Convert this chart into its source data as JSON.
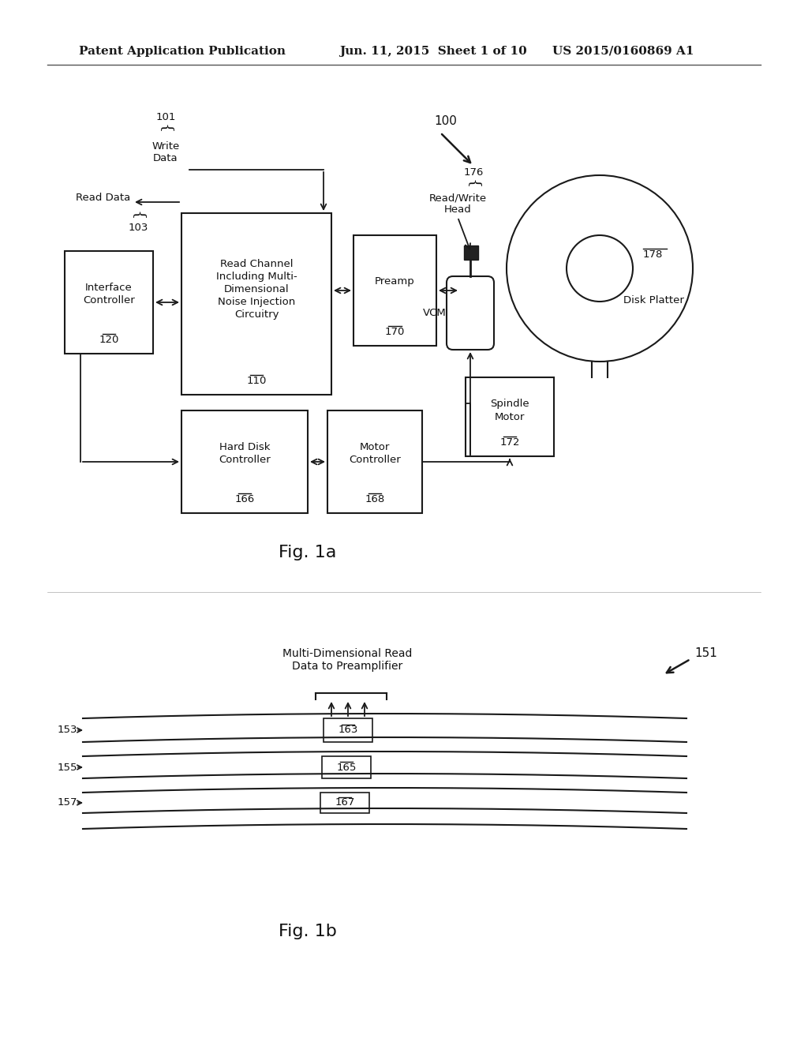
{
  "bg_color": "#ffffff",
  "header_text": "Patent Application Publication        Jun. 11, 2015  Sheet 1 of 10        US 2015/0160869 A1",
  "fig1a_label": "Fig. 1a",
  "fig1b_label": "Fig. 1b",
  "label_100": "100",
  "label_101": "101",
  "label_103": "103",
  "label_110": "110",
  "label_120": "120",
  "label_166": "166",
  "label_168": "168",
  "label_170": "170",
  "label_172": "172",
  "label_176": "176",
  "label_178": "178",
  "text_write_data": "Write\nData",
  "text_read_data": "Read Data",
  "text_read_channel": "Read Channel\nIncluding Multi-\nDimensional\nNoise Injection\nCircuitry",
  "text_interface_ctrl": "Interface\nController",
  "text_preamp": "Preamp",
  "text_hard_disk": "Hard Disk\nController",
  "text_motor_ctrl": "Motor\nController",
  "text_spindle": "Spindle\nMotor",
  "text_disk_platter": "Disk Platter",
  "text_rw_head": "Read/Write\nHead",
  "text_vcm": "VCM",
  "text_multi_dim": "Multi-Dimensional Read\nData to Preamplifier",
  "label_151": "151",
  "label_153": "153",
  "label_155": "155",
  "label_157": "157",
  "label_163": "163",
  "label_165": "165",
  "label_167": "167"
}
